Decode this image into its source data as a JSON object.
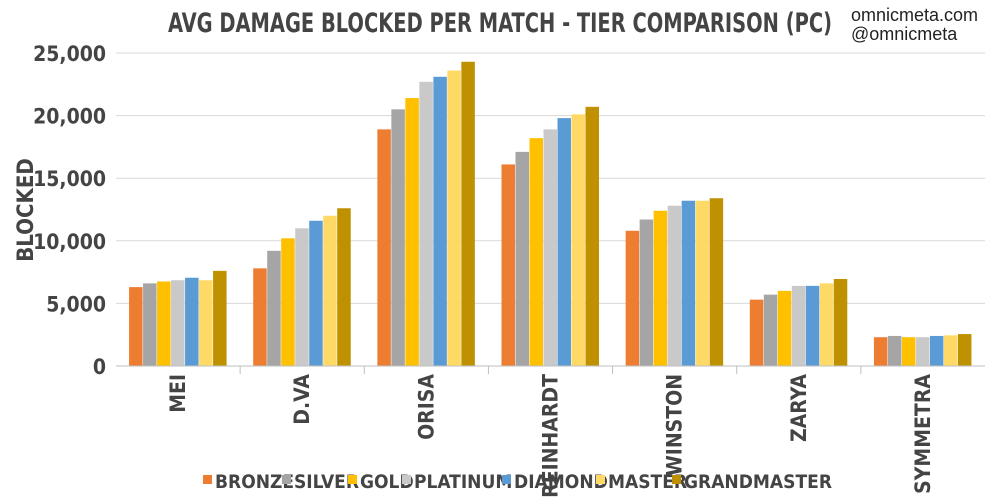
{
  "header": {
    "title": "AVG DAMAGE BLOCKED PER MATCH - TIER COMPARISON (PC)",
    "brand_site": "omnicmeta.com",
    "brand_handle": "@omnicmeta"
  },
  "chart_data": {
    "type": "bar",
    "title": "AVG DAMAGE BLOCKED PER MATCH - TIER COMPARISON (PC)",
    "xlabel": "",
    "ylabel": "BLOCKED",
    "ylim": [
      0,
      25000
    ],
    "yticks": [
      "0",
      "5,000",
      "10,000",
      "15,000",
      "20,000",
      "25,000"
    ],
    "ytick_values": [
      0,
      5000,
      10000,
      15000,
      20000,
      25000
    ],
    "grid": true,
    "legend_position": "bottom",
    "categories": [
      "MEI",
      "D.VA",
      "ORISA",
      "REINHARDT",
      "WINSTON",
      "ZARYA",
      "SYMMETRA"
    ],
    "series": [
      {
        "name": "BRONZE",
        "color": "#ed7d31",
        "values": [
          6300,
          7800,
          18900,
          16100,
          10800,
          5300,
          2300
        ]
      },
      {
        "name": "SILVER",
        "color": "#a5a5a5",
        "values": [
          6600,
          9200,
          20500,
          17100,
          11700,
          5700,
          2400
        ]
      },
      {
        "name": "GOLD",
        "color": "#ffc000",
        "values": [
          6750,
          10200,
          21400,
          18200,
          12400,
          6000,
          2300
        ]
      },
      {
        "name": "PLATINUM",
        "color": "#c9c9c9",
        "values": [
          6850,
          11000,
          22700,
          18900,
          12800,
          6400,
          2300
        ]
      },
      {
        "name": "DIAMOND",
        "color": "#5b9bd5",
        "values": [
          7050,
          11600,
          23100,
          19800,
          13200,
          6400,
          2400
        ]
      },
      {
        "name": "MASTER",
        "color": "#ffd966",
        "values": [
          6850,
          12000,
          23600,
          20100,
          13200,
          6600,
          2450
        ]
      },
      {
        "name": "GRANDMASTER",
        "color": "#bf9000",
        "values": [
          7600,
          12600,
          24300,
          20700,
          13400,
          6950,
          2550
        ]
      }
    ]
  }
}
